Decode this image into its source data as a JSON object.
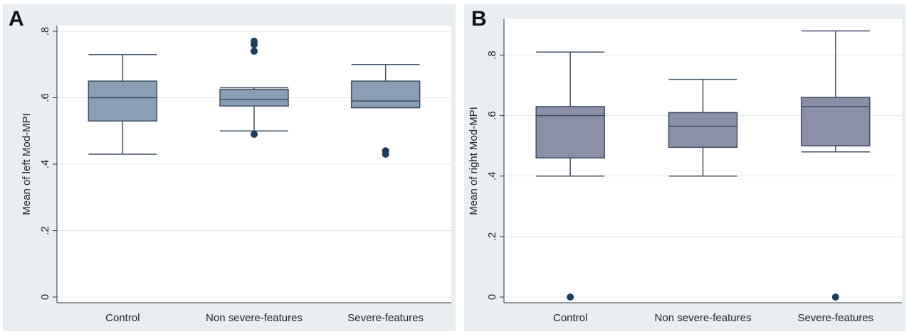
{
  "chart_data": [
    {
      "type": "box",
      "panel_label": "A",
      "ylabel": "Mean of left Mod-MPI",
      "ylim": [
        0,
        0.8
      ],
      "yticks": [
        0,
        0.2,
        0.4,
        0.6,
        0.8
      ],
      "ytick_labels": [
        "0",
        ".2",
        ".4",
        ".6",
        ".8"
      ],
      "grid": true,
      "box_color": "#8a9fb5",
      "categories": [
        "Control",
        "Non severe-features",
        "Severe-features"
      ],
      "boxes": [
        {
          "category": "Control",
          "whisker_low": 0.43,
          "q1": 0.53,
          "median": 0.6,
          "q3": 0.65,
          "whisker_high": 0.73,
          "outliers": []
        },
        {
          "category": "Non severe-features",
          "whisker_low": 0.5,
          "q1": 0.575,
          "median": 0.595,
          "q3": 0.625,
          "whisker_high": 0.63,
          "outliers": [
            0.49,
            0.74,
            0.76,
            0.77
          ]
        },
        {
          "category": "Severe-features",
          "whisker_low": 0.57,
          "q1": 0.57,
          "median": 0.59,
          "q3": 0.65,
          "whisker_high": 0.7,
          "outliers": [
            0.43,
            0.44
          ]
        }
      ]
    },
    {
      "type": "box",
      "panel_label": "B",
      "ylabel": "Mean of right Mod-MPI",
      "ylim": [
        0,
        0.9
      ],
      "yticks": [
        0,
        0.2,
        0.4,
        0.6,
        0.8
      ],
      "ytick_labels": [
        "0",
        ".2",
        ".4",
        ".6",
        ".8"
      ],
      "grid": true,
      "box_color": "#8b8fa8",
      "categories": [
        "Control",
        "Non severe-features",
        "Severe-features"
      ],
      "boxes": [
        {
          "category": "Control",
          "whisker_low": 0.4,
          "q1": 0.46,
          "median": 0.6,
          "q3": 0.63,
          "whisker_high": 0.81,
          "outliers": [
            0.0
          ]
        },
        {
          "category": "Non severe-features",
          "whisker_low": 0.4,
          "q1": 0.495,
          "median": 0.565,
          "q3": 0.61,
          "whisker_high": 0.72,
          "outliers": []
        },
        {
          "category": "Severe-features",
          "whisker_low": 0.48,
          "q1": 0.5,
          "median": 0.63,
          "q3": 0.66,
          "whisker_high": 0.88,
          "outliers": [
            0.0
          ]
        }
      ]
    }
  ]
}
